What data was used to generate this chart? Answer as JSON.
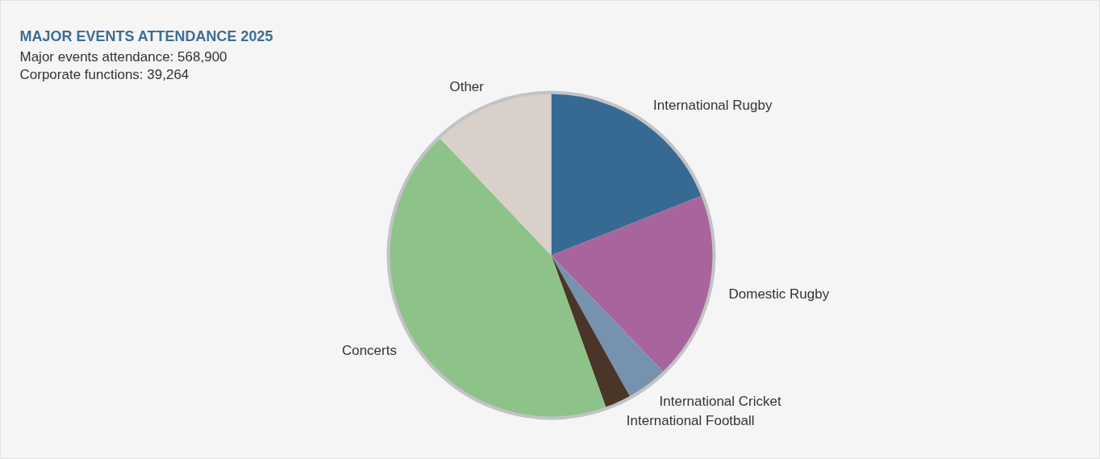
{
  "chart_data": {
    "type": "pie",
    "title": "MAJOR EVENTS ATTENDANCE 2025",
    "subtitle": "Major events attendance: 568,900",
    "annotations": [
      "Corporate functions: 39,264"
    ],
    "categories": [
      "International Rugby",
      "Domestic Rugby",
      "International Cricket",
      "International Football",
      "Concerts",
      "Other"
    ],
    "values": [
      19,
      18.8,
      4.1,
      2.6,
      43.4,
      12.1
    ],
    "colors": [
      "#376a93",
      "#a8649c",
      "#7792ae",
      "#4a3628",
      "#8dc389",
      "#d9d0ca"
    ]
  }
}
